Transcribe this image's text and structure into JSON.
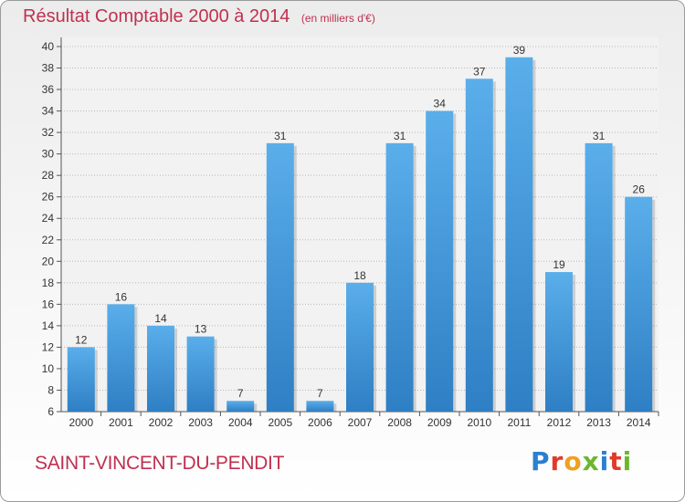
{
  "header": {
    "title": "Résultat Comptable 2000 à 2014",
    "subtitle": "(en milliers d'€)"
  },
  "commune": "SAINT-VINCENT-DU-PENDIT",
  "logo": {
    "text": "Proxiti",
    "letters": [
      "P",
      "r",
      "o",
      "x",
      "i",
      "t",
      "i"
    ],
    "colors": [
      "#2a7fd0",
      "#e23a2a",
      "#f0a020",
      "#6cb72e",
      "#2a7fd0",
      "#e23a2a",
      "#6cb72e"
    ]
  },
  "colors": {
    "bar": "#4a9fdf",
    "bar_dark": "#2e7fc4",
    "title": "#c0304f",
    "grid": "#b8b8b8"
  },
  "chart_data": {
    "type": "bar",
    "title": "Résultat Comptable 2000 à 2014",
    "subtitle": "(en milliers d'€)",
    "categories": [
      "2000",
      "2001",
      "2002",
      "2003",
      "2004",
      "2005",
      "2006",
      "2007",
      "2008",
      "2009",
      "2010",
      "2011",
      "2012",
      "2013",
      "2014"
    ],
    "values": [
      12,
      16,
      14,
      13,
      7,
      31,
      7,
      18,
      31,
      34,
      37,
      39,
      19,
      31,
      26
    ],
    "ylim": [
      6,
      40
    ],
    "yticks": [
      6,
      8,
      10,
      12,
      14,
      16,
      18,
      20,
      22,
      24,
      26,
      28,
      30,
      32,
      34,
      36,
      38,
      40
    ],
    "grid": true,
    "data_labels": true
  }
}
